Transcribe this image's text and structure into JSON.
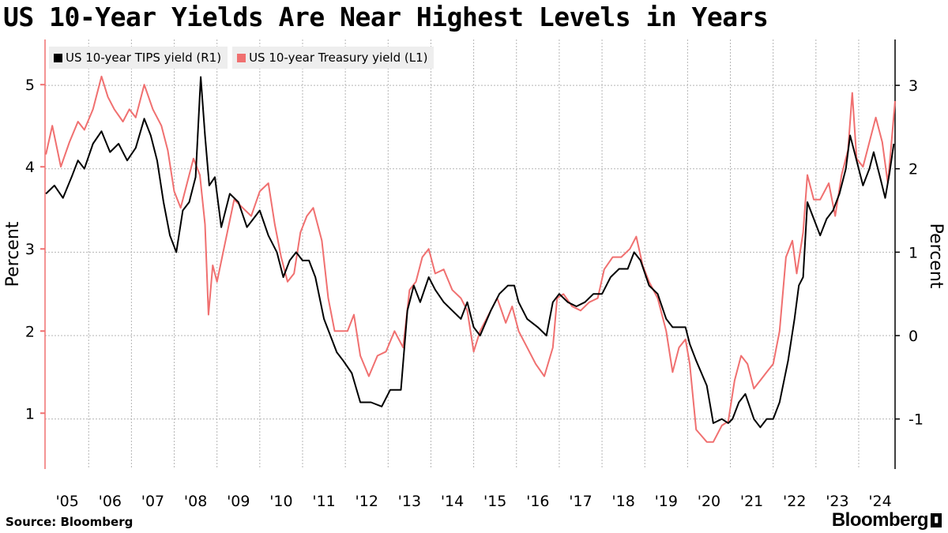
{
  "title": "US 10-Year Yields Are Near Highest Levels in Years",
  "source": "Source: Bloomberg",
  "brand": "Bloomberg",
  "chart_data": {
    "type": "line",
    "title": "US 10-Year Yields Are Near Highest Levels in Years",
    "left_axis": {
      "label": "Percent",
      "ticks": [
        1,
        2,
        3,
        4,
        5
      ],
      "range": [
        0.32,
        5.55
      ]
    },
    "right_axis": {
      "label": "Percent",
      "ticks": [
        -1,
        0,
        1,
        2,
        3
      ],
      "range": [
        -1.6,
        3.55
      ]
    },
    "x_range": [
      2004.98,
      2024.85
    ],
    "x_tick_labels": [
      "'05",
      "'06",
      "'07",
      "'08",
      "'09",
      "'10",
      "'11",
      "'12",
      "'13",
      "'14",
      "'15",
      "'16",
      "'17",
      "'18",
      "'19",
      "'20",
      "'21",
      "'22",
      "'23",
      "'24"
    ],
    "legend_position": "top-left",
    "grid": true,
    "colors": {
      "tips": "#000000",
      "treasury": "#f07070"
    },
    "series": [
      {
        "name": "US 10-year TIPS yield (R1)",
        "axis": "right",
        "color": "#000000",
        "points": [
          [
            2005.0,
            1.7
          ],
          [
            2005.2,
            1.8
          ],
          [
            2005.4,
            1.65
          ],
          [
            2005.6,
            1.9
          ],
          [
            2005.75,
            2.1
          ],
          [
            2005.9,
            2.0
          ],
          [
            2006.1,
            2.3
          ],
          [
            2006.3,
            2.45
          ],
          [
            2006.5,
            2.2
          ],
          [
            2006.7,
            2.3
          ],
          [
            2006.9,
            2.1
          ],
          [
            2007.1,
            2.25
          ],
          [
            2007.3,
            2.6
          ],
          [
            2007.45,
            2.4
          ],
          [
            2007.6,
            2.1
          ],
          [
            2007.75,
            1.6
          ],
          [
            2007.9,
            1.2
          ],
          [
            2008.05,
            1.0
          ],
          [
            2008.2,
            1.5
          ],
          [
            2008.35,
            1.6
          ],
          [
            2008.5,
            1.9
          ],
          [
            2008.62,
            3.1
          ],
          [
            2008.72,
            2.4
          ],
          [
            2008.82,
            1.8
          ],
          [
            2008.95,
            1.9
          ],
          [
            2009.1,
            1.3
          ],
          [
            2009.3,
            1.7
          ],
          [
            2009.5,
            1.6
          ],
          [
            2009.7,
            1.3
          ],
          [
            2009.85,
            1.4
          ],
          [
            2010.0,
            1.5
          ],
          [
            2010.2,
            1.2
          ],
          [
            2010.4,
            1.0
          ],
          [
            2010.55,
            0.7
          ],
          [
            2010.7,
            0.9
          ],
          [
            2010.85,
            1.0
          ],
          [
            2011.0,
            0.9
          ],
          [
            2011.15,
            0.9
          ],
          [
            2011.3,
            0.7
          ],
          [
            2011.5,
            0.2
          ],
          [
            2011.65,
            0.0
          ],
          [
            2011.8,
            -0.2
          ],
          [
            2011.95,
            -0.3
          ],
          [
            2012.15,
            -0.45
          ],
          [
            2012.35,
            -0.8
          ],
          [
            2012.6,
            -0.8
          ],
          [
            2012.85,
            -0.85
          ],
          [
            2013.05,
            -0.65
          ],
          [
            2013.3,
            -0.65
          ],
          [
            2013.45,
            0.3
          ],
          [
            2013.6,
            0.6
          ],
          [
            2013.75,
            0.4
          ],
          [
            2013.95,
            0.7
          ],
          [
            2014.1,
            0.55
          ],
          [
            2014.3,
            0.4
          ],
          [
            2014.5,
            0.3
          ],
          [
            2014.7,
            0.2
          ],
          [
            2014.85,
            0.4
          ],
          [
            2015.0,
            0.1
          ],
          [
            2015.15,
            0.0
          ],
          [
            2015.4,
            0.3
          ],
          [
            2015.6,
            0.5
          ],
          [
            2015.8,
            0.6
          ],
          [
            2015.95,
            0.6
          ],
          [
            2016.05,
            0.4
          ],
          [
            2016.25,
            0.2
          ],
          [
            2016.5,
            0.1
          ],
          [
            2016.7,
            0.0
          ],
          [
            2016.85,
            0.4
          ],
          [
            2017.0,
            0.5
          ],
          [
            2017.2,
            0.4
          ],
          [
            2017.4,
            0.35
          ],
          [
            2017.6,
            0.4
          ],
          [
            2017.8,
            0.5
          ],
          [
            2018.0,
            0.5
          ],
          [
            2018.2,
            0.7
          ],
          [
            2018.4,
            0.8
          ],
          [
            2018.6,
            0.8
          ],
          [
            2018.75,
            1.0
          ],
          [
            2018.9,
            0.9
          ],
          [
            2019.1,
            0.6
          ],
          [
            2019.3,
            0.5
          ],
          [
            2019.5,
            0.2
          ],
          [
            2019.65,
            0.1
          ],
          [
            2019.8,
            0.1
          ],
          [
            2019.95,
            0.1
          ],
          [
            2020.05,
            -0.1
          ],
          [
            2020.2,
            -0.3
          ],
          [
            2020.45,
            -0.6
          ],
          [
            2020.6,
            -1.05
          ],
          [
            2020.8,
            -1.0
          ],
          [
            2020.95,
            -1.05
          ],
          [
            2021.05,
            -1.0
          ],
          [
            2021.2,
            -0.8
          ],
          [
            2021.35,
            -0.7
          ],
          [
            2021.55,
            -1.0
          ],
          [
            2021.7,
            -1.1
          ],
          [
            2021.85,
            -1.0
          ],
          [
            2022.0,
            -1.0
          ],
          [
            2022.15,
            -0.8
          ],
          [
            2022.35,
            -0.3
          ],
          [
            2022.5,
            0.2
          ],
          [
            2022.6,
            0.6
          ],
          [
            2022.7,
            0.7
          ],
          [
            2022.8,
            1.6
          ],
          [
            2022.95,
            1.4
          ],
          [
            2023.1,
            1.2
          ],
          [
            2023.25,
            1.4
          ],
          [
            2023.4,
            1.5
          ],
          [
            2023.55,
            1.7
          ],
          [
            2023.7,
            2.0
          ],
          [
            2023.8,
            2.4
          ],
          [
            2023.95,
            2.1
          ],
          [
            2024.1,
            1.8
          ],
          [
            2024.25,
            2.0
          ],
          [
            2024.35,
            2.2
          ],
          [
            2024.5,
            1.9
          ],
          [
            2024.62,
            1.65
          ],
          [
            2024.72,
            1.95
          ],
          [
            2024.82,
            2.3
          ]
        ]
      },
      {
        "name": "US 10-year Treasury yield (L1)",
        "axis": "left",
        "color": "#f07070",
        "points": [
          [
            2005.0,
            4.15
          ],
          [
            2005.15,
            4.5
          ],
          [
            2005.35,
            4.0
          ],
          [
            2005.55,
            4.3
          ],
          [
            2005.75,
            4.55
          ],
          [
            2005.9,
            4.45
          ],
          [
            2006.1,
            4.7
          ],
          [
            2006.3,
            5.1
          ],
          [
            2006.45,
            4.85
          ],
          [
            2006.6,
            4.7
          ],
          [
            2006.8,
            4.55
          ],
          [
            2006.95,
            4.7
          ],
          [
            2007.1,
            4.6
          ],
          [
            2007.3,
            5.0
          ],
          [
            2007.5,
            4.7
          ],
          [
            2007.7,
            4.5
          ],
          [
            2007.85,
            4.2
          ],
          [
            2008.0,
            3.7
          ],
          [
            2008.15,
            3.5
          ],
          [
            2008.3,
            3.8
          ],
          [
            2008.45,
            4.1
          ],
          [
            2008.6,
            3.9
          ],
          [
            2008.72,
            3.3
          ],
          [
            2008.8,
            2.2
          ],
          [
            2008.9,
            2.8
          ],
          [
            2009.0,
            2.6
          ],
          [
            2009.2,
            3.1
          ],
          [
            2009.4,
            3.6
          ],
          [
            2009.6,
            3.5
          ],
          [
            2009.8,
            3.4
          ],
          [
            2010.0,
            3.7
          ],
          [
            2010.2,
            3.8
          ],
          [
            2010.35,
            3.3
          ],
          [
            2010.5,
            2.9
          ],
          [
            2010.65,
            2.6
          ],
          [
            2010.8,
            2.7
          ],
          [
            2010.95,
            3.2
          ],
          [
            2011.1,
            3.4
          ],
          [
            2011.25,
            3.5
          ],
          [
            2011.45,
            3.1
          ],
          [
            2011.6,
            2.4
          ],
          [
            2011.75,
            2.0
          ],
          [
            2011.9,
            2.0
          ],
          [
            2012.05,
            2.0
          ],
          [
            2012.2,
            2.2
          ],
          [
            2012.35,
            1.7
          ],
          [
            2012.55,
            1.45
          ],
          [
            2012.75,
            1.7
          ],
          [
            2012.95,
            1.75
          ],
          [
            2013.15,
            2.0
          ],
          [
            2013.35,
            1.8
          ],
          [
            2013.5,
            2.5
          ],
          [
            2013.65,
            2.6
          ],
          [
            2013.8,
            2.9
          ],
          [
            2013.95,
            3.0
          ],
          [
            2014.1,
            2.7
          ],
          [
            2014.3,
            2.75
          ],
          [
            2014.5,
            2.5
          ],
          [
            2014.7,
            2.4
          ],
          [
            2014.85,
            2.25
          ],
          [
            2015.0,
            1.75
          ],
          [
            2015.15,
            2.0
          ],
          [
            2015.35,
            2.2
          ],
          [
            2015.55,
            2.4
          ],
          [
            2015.75,
            2.1
          ],
          [
            2015.9,
            2.3
          ],
          [
            2016.05,
            2.0
          ],
          [
            2016.25,
            1.8
          ],
          [
            2016.45,
            1.6
          ],
          [
            2016.65,
            1.45
          ],
          [
            2016.85,
            1.8
          ],
          [
            2016.95,
            2.4
          ],
          [
            2017.1,
            2.45
          ],
          [
            2017.3,
            2.3
          ],
          [
            2017.5,
            2.25
          ],
          [
            2017.7,
            2.35
          ],
          [
            2017.9,
            2.4
          ],
          [
            2018.05,
            2.75
          ],
          [
            2018.25,
            2.9
          ],
          [
            2018.45,
            2.9
          ],
          [
            2018.65,
            3.0
          ],
          [
            2018.8,
            3.15
          ],
          [
            2018.95,
            2.8
          ],
          [
            2019.1,
            2.6
          ],
          [
            2019.3,
            2.4
          ],
          [
            2019.5,
            2.0
          ],
          [
            2019.65,
            1.5
          ],
          [
            2019.8,
            1.8
          ],
          [
            2019.95,
            1.9
          ],
          [
            2020.05,
            1.6
          ],
          [
            2020.2,
            0.8
          ],
          [
            2020.45,
            0.65
          ],
          [
            2020.6,
            0.65
          ],
          [
            2020.8,
            0.85
          ],
          [
            2020.95,
            0.9
          ],
          [
            2021.1,
            1.4
          ],
          [
            2021.25,
            1.7
          ],
          [
            2021.4,
            1.6
          ],
          [
            2021.55,
            1.3
          ],
          [
            2021.7,
            1.4
          ],
          [
            2021.85,
            1.5
          ],
          [
            2022.0,
            1.6
          ],
          [
            2022.15,
            2.0
          ],
          [
            2022.3,
            2.9
          ],
          [
            2022.45,
            3.1
          ],
          [
            2022.55,
            2.7
          ],
          [
            2022.7,
            3.2
          ],
          [
            2022.8,
            3.9
          ],
          [
            2022.95,
            3.6
          ],
          [
            2023.1,
            3.6
          ],
          [
            2023.3,
            3.8
          ],
          [
            2023.45,
            3.4
          ],
          [
            2023.6,
            3.9
          ],
          [
            2023.75,
            4.2
          ],
          [
            2023.85,
            4.9
          ],
          [
            2023.95,
            4.1
          ],
          [
            2024.1,
            4.0
          ],
          [
            2024.25,
            4.3
          ],
          [
            2024.4,
            4.6
          ],
          [
            2024.55,
            4.3
          ],
          [
            2024.68,
            3.8
          ],
          [
            2024.75,
            4.2
          ],
          [
            2024.85,
            4.8
          ]
        ]
      }
    ]
  }
}
